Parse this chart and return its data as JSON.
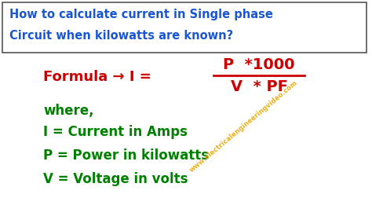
{
  "bg_color": "#ffffff",
  "title_box_bg": "#ffffff",
  "title_line1": "How to calculate current in Single phase",
  "title_line2": "Circuit when kilowatts are known?",
  "title_color": "#1a56d4",
  "title_border_color": "#555555",
  "formula_label": "Formula → I = ",
  "formula_numerator": "P  *1000",
  "formula_denominator": "V  * PF",
  "formula_color": "#cc0000",
  "where_color": "#008000",
  "where_text": "where,",
  "def1": "I = Current in Amps",
  "def2": "P = Power in kilowatts",
  "def3": "V = Voltage in volts",
  "watermark": "www.electricalengineeringvideo.com",
  "watermark_color": "#e6a800",
  "title_fontsize": 10.5,
  "formula_fontsize": 13,
  "body_fontsize": 12
}
